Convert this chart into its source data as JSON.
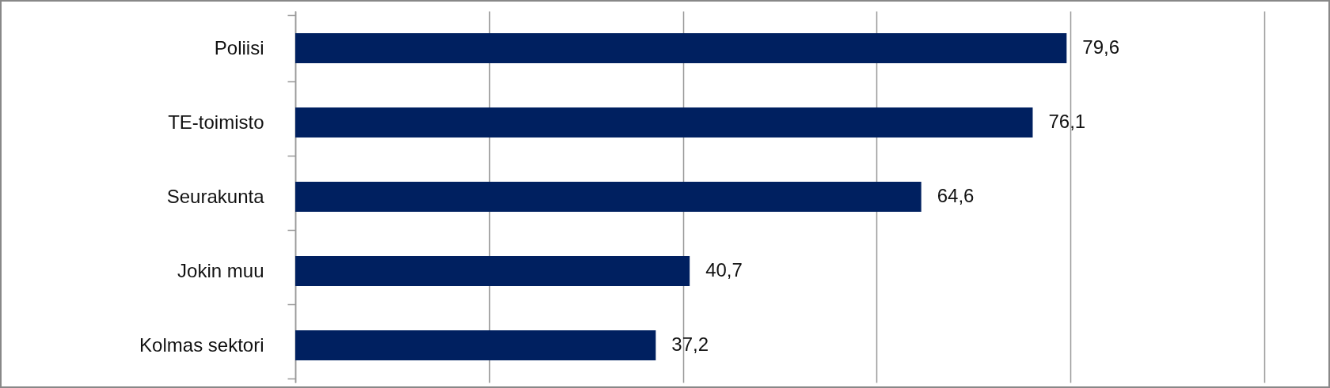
{
  "chart_data": {
    "type": "bar",
    "orientation": "horizontal",
    "categories": [
      "Poliisi",
      "TE-toimisto",
      "Seurakunta",
      "Jokin muu",
      "Kolmas sektori"
    ],
    "values": [
      79.6,
      76.1,
      64.6,
      40.7,
      37.2
    ],
    "color": "#002060",
    "value_labels": [
      "79,6",
      "76,1",
      "64,6",
      "40,7",
      "37,2"
    ],
    "xlim": [
      0,
      100
    ],
    "xticks": [
      {
        "value": 0,
        "label": null
      },
      {
        "value": 20,
        "label": null
      },
      {
        "value": 40,
        "label": null
      },
      {
        "value": 60,
        "label": null
      },
      {
        "value": 80,
        "label": null
      },
      {
        "value": 100,
        "label": null
      }
    ],
    "grid": "x",
    "tick_labels": "y"
  }
}
